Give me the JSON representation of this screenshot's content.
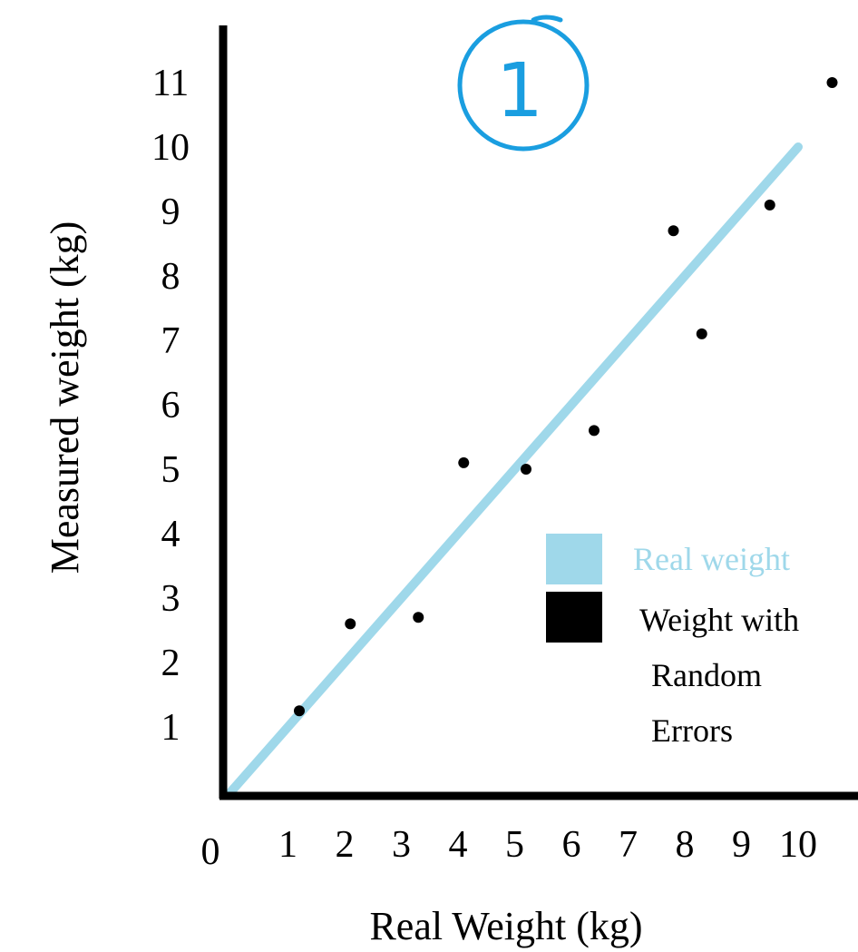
{
  "chart_data": {
    "type": "scatter",
    "title": "",
    "xlabel": "Real Weight (kg)",
    "ylabel": "Measured weight (kg)",
    "xlim": [
      0,
      11
    ],
    "ylim": [
      0,
      11.5
    ],
    "grid": false,
    "legend_position": "right",
    "x_ticks": [
      "0",
      "1",
      "2",
      "3",
      "4",
      "5",
      "6",
      "7",
      "8",
      "9",
      "10"
    ],
    "y_ticks": [
      "1",
      "2",
      "3",
      "4",
      "5",
      "6",
      "7",
      "8",
      "9",
      "10",
      "11"
    ],
    "annotation": "1",
    "series": [
      {
        "name": "Real weight",
        "type": "line",
        "color": "#9fd8ea",
        "points": [
          [
            0,
            0
          ],
          [
            10,
            10
          ]
        ]
      },
      {
        "name": "Weight with Random Errors",
        "type": "scatter",
        "color": "#000000",
        "points": [
          [
            1.2,
            1.25
          ],
          [
            2.1,
            2.6
          ],
          [
            3.3,
            2.7
          ],
          [
            4.1,
            5.1
          ],
          [
            5.2,
            5.0
          ],
          [
            6.4,
            5.6
          ],
          [
            7.8,
            8.7
          ],
          [
            8.3,
            7.1
          ],
          [
            9.5,
            9.1
          ],
          [
            10.6,
            11.0
          ]
        ]
      }
    ],
    "legend": {
      "items": [
        {
          "label_lines": [
            "Real weight"
          ],
          "color": "#9fd8ea",
          "text_color": "#9fd8ea"
        },
        {
          "label_lines": [
            "Weight with",
            "Random",
            "Errors"
          ],
          "color": "#000000",
          "text_color": "#000000"
        }
      ]
    }
  }
}
